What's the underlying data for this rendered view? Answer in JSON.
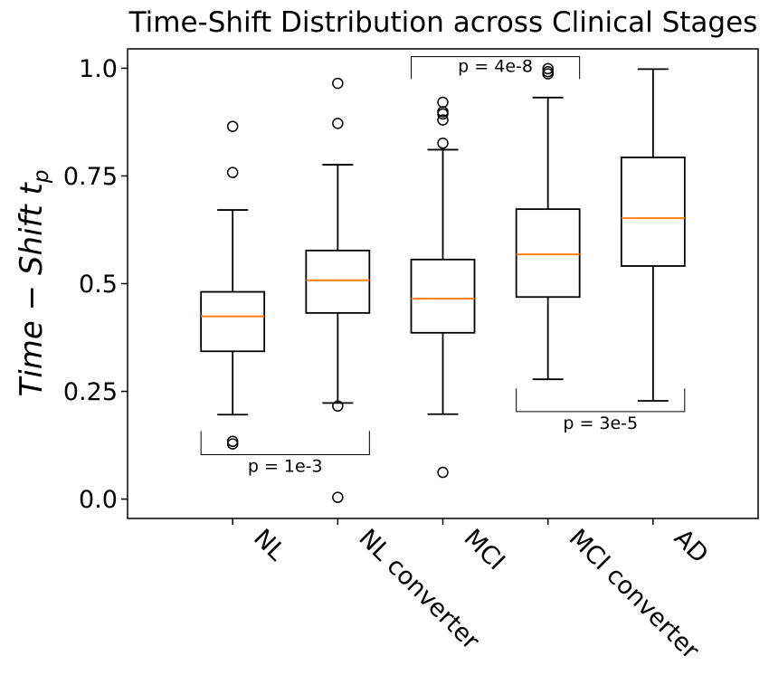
{
  "chart_data": {
    "type": "box",
    "title": "Time-Shift Distribution across Clinical Stages",
    "ylabel_main": "Time − Shift t",
    "ylabel_sub": "p",
    "ylim": [
      -0.045,
      1.045
    ],
    "yticks": [
      0.0,
      0.25,
      0.5,
      0.75,
      1.0
    ],
    "ytick_labels": [
      "0.0",
      "0.25",
      "0.5",
      "0.75",
      "1.0"
    ],
    "grid": false,
    "categories": [
      "NL",
      "NL converter",
      "MCI",
      "MCI converter",
      "AD"
    ],
    "boxes": [
      {
        "label": "NL",
        "whislo": 0.196,
        "q1": 0.343,
        "median": 0.424,
        "q3": 0.481,
        "whishi": 0.671,
        "fliers": [
          0.865,
          0.758,
          0.134,
          0.128
        ]
      },
      {
        "label": "NL converter",
        "whislo": 0.223,
        "q1": 0.432,
        "median": 0.508,
        "q3": 0.577,
        "whishi": 0.776,
        "fliers": [
          0.965,
          0.872,
          0.216,
          0.004
        ]
      },
      {
        "label": "MCI",
        "whislo": 0.197,
        "q1": 0.386,
        "median": 0.465,
        "q3": 0.556,
        "whishi": 0.811,
        "fliers": [
          0.921,
          0.899,
          0.894,
          0.88,
          0.826,
          0.062
        ]
      },
      {
        "label": "MCI converter",
        "whislo": 0.278,
        "q1": 0.469,
        "median": 0.568,
        "q3": 0.673,
        "whishi": 0.932,
        "fliers": [
          0.999,
          0.992,
          0.987
        ]
      },
      {
        "label": "AD",
        "whislo": 0.228,
        "q1": 0.541,
        "median": 0.652,
        "q3": 0.793,
        "whishi": 0.998,
        "fliers": []
      }
    ],
    "annotations": [
      {
        "text": "p = 1e-3",
        "from": 0,
        "to": 1,
        "y_bracket": 0.103,
        "tick_to": 0.158,
        "side": "below"
      },
      {
        "text": "p = 4e-8",
        "from": 2,
        "to": 3,
        "y_bracket": 1.027,
        "tick_to": 0.975,
        "side": "above"
      },
      {
        "text": "p = 3e-5",
        "from": 3,
        "to": 4,
        "y_bracket": 0.203,
        "tick_to": 0.257,
        "side": "below"
      }
    ],
    "colors": {
      "box": "#000000",
      "median": "#ff7f0e",
      "bracket": "#000000"
    }
  }
}
